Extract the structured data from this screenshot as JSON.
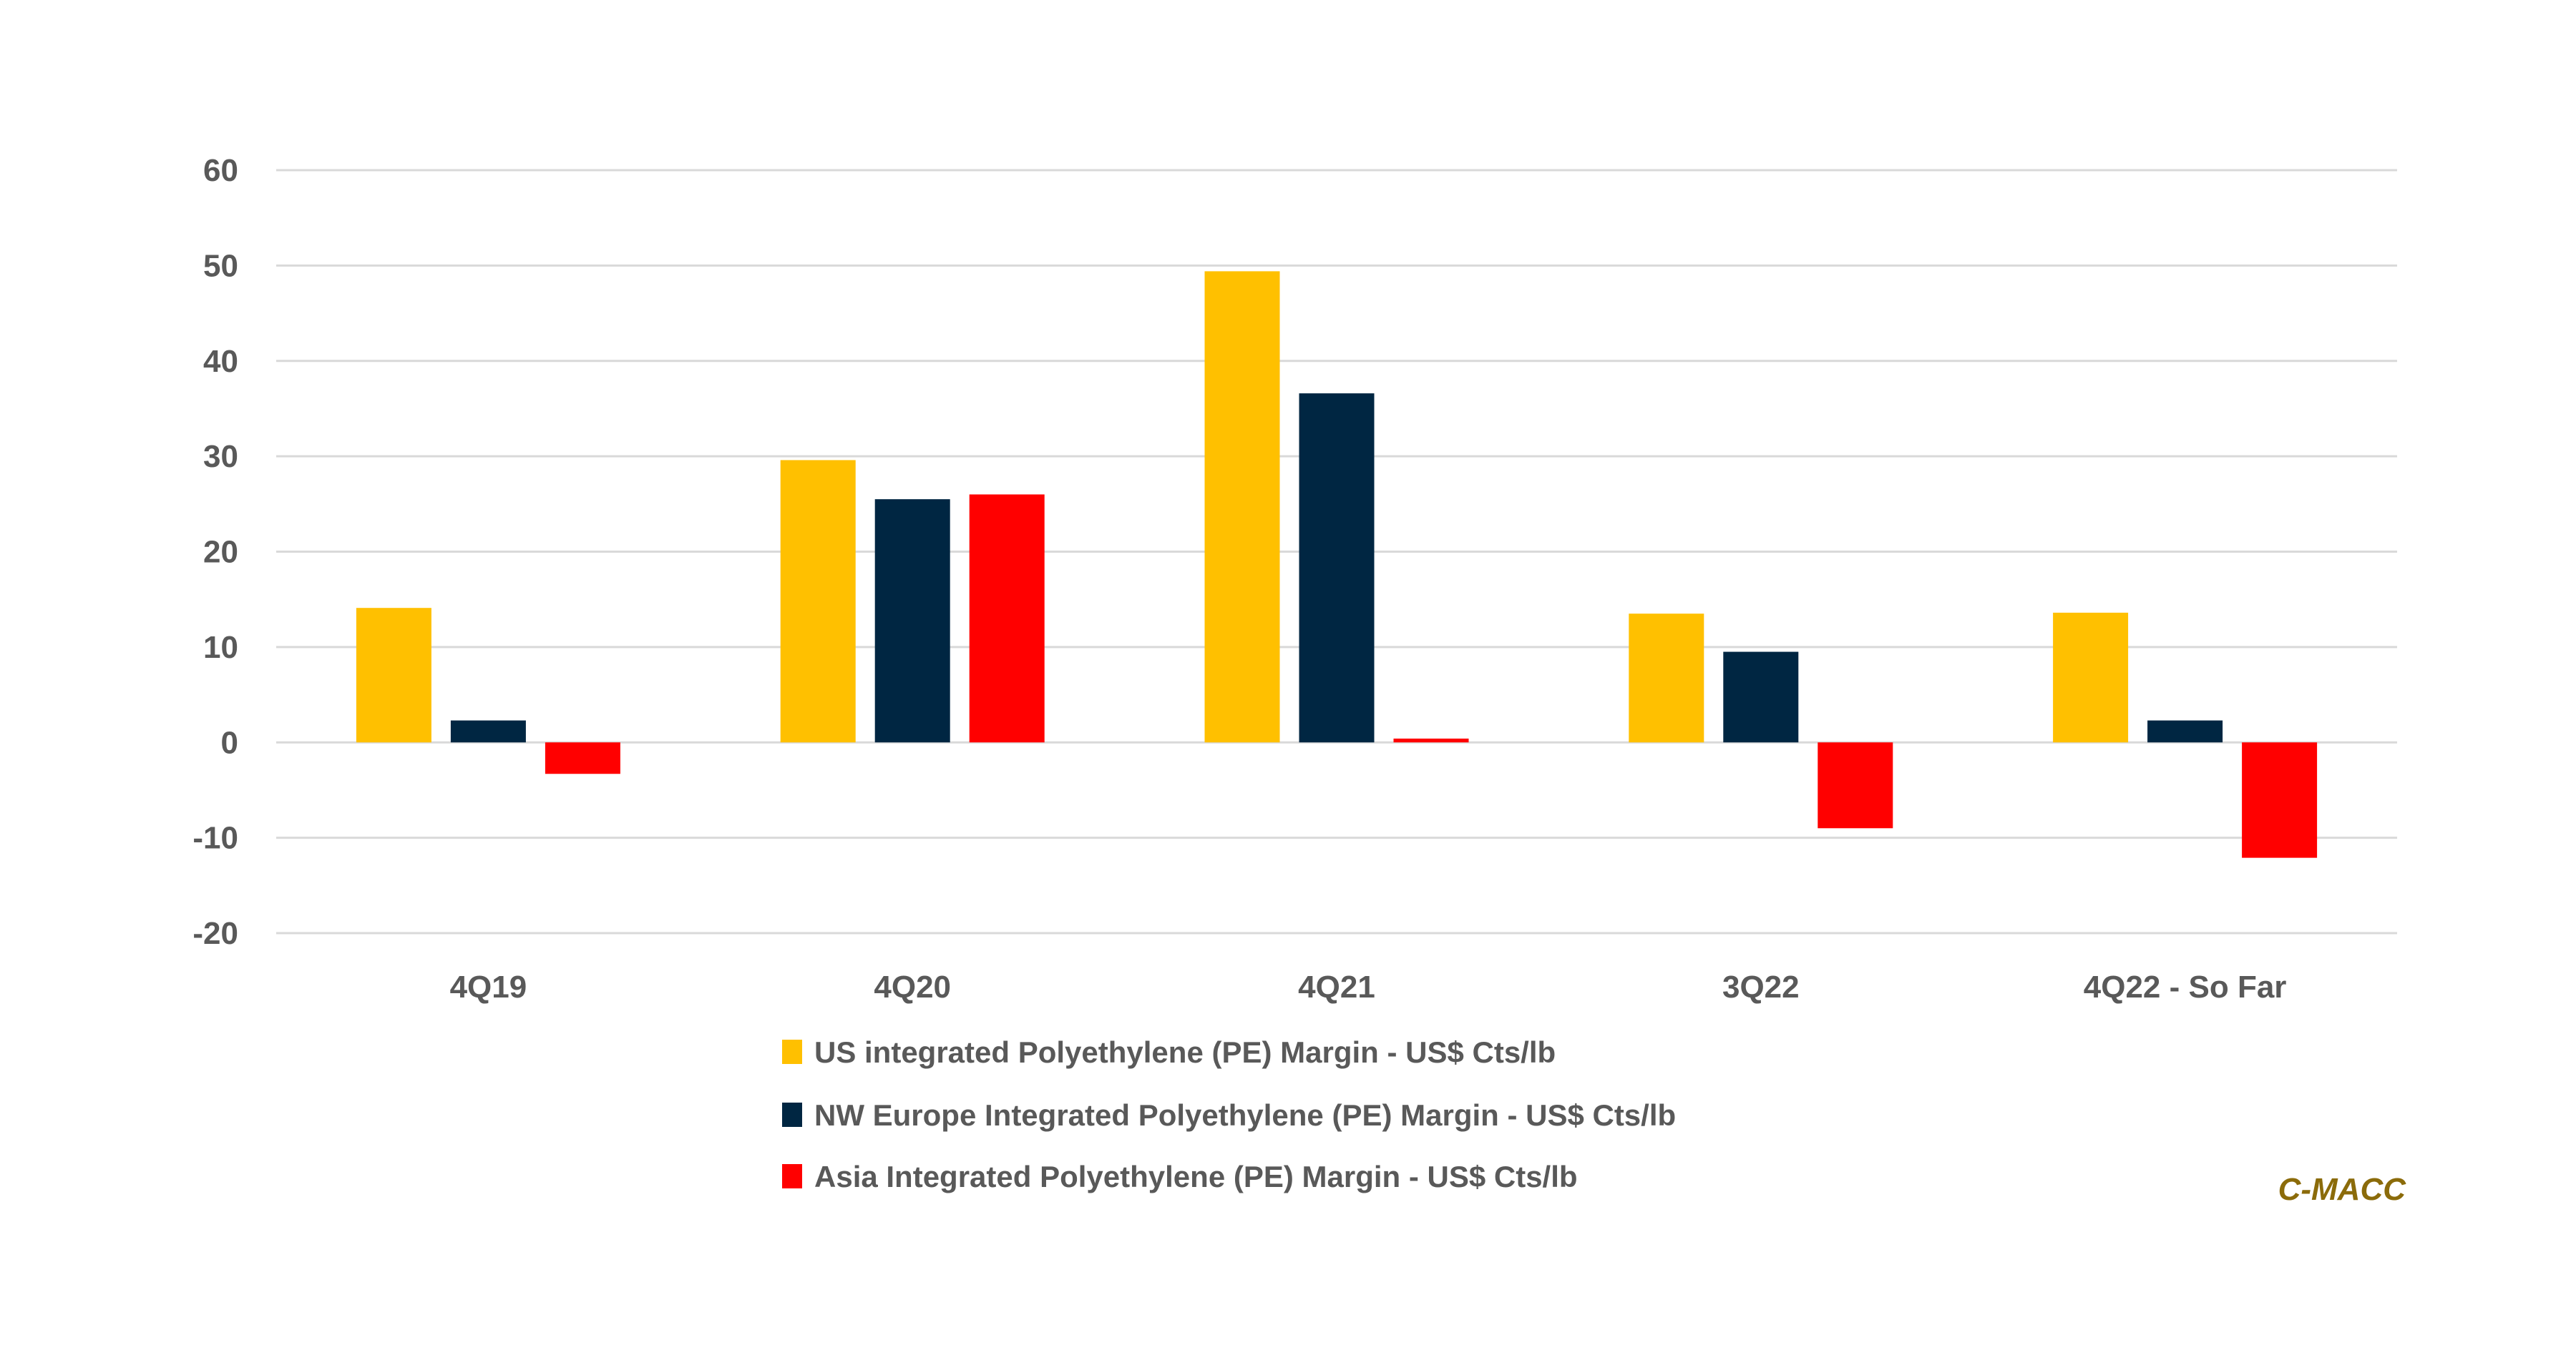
{
  "chart_data": {
    "type": "bar",
    "title": "",
    "xlabel": "",
    "ylabel": "",
    "ylim": [
      -20,
      60
    ],
    "yticks": [
      "60",
      "50",
      "40",
      "30",
      "20",
      "10",
      "0",
      "-10",
      "-20"
    ],
    "ytick_values": [
      60,
      50,
      40,
      30,
      20,
      10,
      0,
      -10,
      -20
    ],
    "grid": true,
    "legend_position": "bottom",
    "categories": [
      "4Q19",
      "4Q20",
      "4Q21",
      "3Q22",
      "4Q22 - So Far"
    ],
    "series": [
      {
        "name": "US integrated Polyethylene (PE) Margin - US$ Cts/lb",
        "color": "#FFC000",
        "values": [
          14.1,
          29.6,
          49.4,
          13.5,
          13.6
        ]
      },
      {
        "name": "NW Europe Integrated Polyethylene (PE) Margin - US$ Cts/lb",
        "color": "#002642",
        "values": [
          2.3,
          25.5,
          36.6,
          9.5,
          2.3
        ]
      },
      {
        "name": "Asia Integrated Polyethylene (PE) Margin - US$ Cts/lb",
        "color": "#FF0000",
        "values": [
          -3.3,
          26.0,
          0.4,
          -9.0,
          -12.1
        ]
      }
    ]
  },
  "source_label": "C-MACC"
}
